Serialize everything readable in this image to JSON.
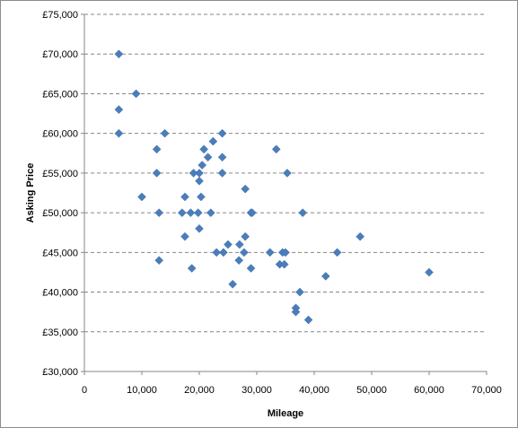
{
  "chart_data": {
    "type": "scatter",
    "title": "",
    "xlabel": "Mileage",
    "ylabel": "Asking Price",
    "xlim": [
      0,
      70000
    ],
    "ylim": [
      30000,
      75000
    ],
    "x_ticks": [
      0,
      10000,
      20000,
      30000,
      40000,
      50000,
      60000,
      70000
    ],
    "x_tick_labels": [
      "0",
      "10,000",
      "20,000",
      "30,000",
      "40,000",
      "50,000",
      "60,000",
      "70,000"
    ],
    "y_ticks": [
      30000,
      35000,
      40000,
      45000,
      50000,
      55000,
      60000,
      65000,
      70000,
      75000
    ],
    "y_tick_labels": [
      "£30,000",
      "£35,000",
      "£40,000",
      "£45,000",
      "£50,000",
      "£55,000",
      "£60,000",
      "£65,000",
      "£70,000",
      "£75,000"
    ],
    "grid": "horizontal dashed",
    "legend": "none",
    "marker": "diamond",
    "color": "#4a7ebb",
    "points": [
      {
        "x": 6000,
        "y": 70000
      },
      {
        "x": 9000,
        "y": 65000
      },
      {
        "x": 6000,
        "y": 63000
      },
      {
        "x": 6000,
        "y": 60000
      },
      {
        "x": 14000,
        "y": 60000
      },
      {
        "x": 12600,
        "y": 58000
      },
      {
        "x": 12600,
        "y": 55000
      },
      {
        "x": 10000,
        "y": 52000
      },
      {
        "x": 13000,
        "y": 50000
      },
      {
        "x": 13000,
        "y": 44000
      },
      {
        "x": 17000,
        "y": 50000
      },
      {
        "x": 17500,
        "y": 52000
      },
      {
        "x": 17500,
        "y": 47000
      },
      {
        "x": 18500,
        "y": 50000
      },
      {
        "x": 18700,
        "y": 43000
      },
      {
        "x": 19000,
        "y": 55000
      },
      {
        "x": 19800,
        "y": 50000
      },
      {
        "x": 20000,
        "y": 54000
      },
      {
        "x": 20000,
        "y": 55000
      },
      {
        "x": 20000,
        "y": 48000
      },
      {
        "x": 20300,
        "y": 52000
      },
      {
        "x": 20500,
        "y": 56000
      },
      {
        "x": 20800,
        "y": 58000
      },
      {
        "x": 21500,
        "y": 57000
      },
      {
        "x": 22000,
        "y": 50000
      },
      {
        "x": 22400,
        "y": 59000
      },
      {
        "x": 23000,
        "y": 45000
      },
      {
        "x": 24000,
        "y": 60000
      },
      {
        "x": 24000,
        "y": 57000
      },
      {
        "x": 24000,
        "y": 55000
      },
      {
        "x": 24200,
        "y": 45000
      },
      {
        "x": 25000,
        "y": 46000
      },
      {
        "x": 25800,
        "y": 41000
      },
      {
        "x": 26900,
        "y": 44000
      },
      {
        "x": 27000,
        "y": 46000
      },
      {
        "x": 27800,
        "y": 45000
      },
      {
        "x": 28000,
        "y": 53000
      },
      {
        "x": 28000,
        "y": 47000
      },
      {
        "x": 29000,
        "y": 50000
      },
      {
        "x": 29200,
        "y": 50000
      },
      {
        "x": 29000,
        "y": 43000
      },
      {
        "x": 32300,
        "y": 45000
      },
      {
        "x": 33400,
        "y": 58000
      },
      {
        "x": 34000,
        "y": 43500
      },
      {
        "x": 34500,
        "y": 45000
      },
      {
        "x": 34800,
        "y": 43500
      },
      {
        "x": 35000,
        "y": 45000
      },
      {
        "x": 35300,
        "y": 55000
      },
      {
        "x": 36800,
        "y": 38000
      },
      {
        "x": 36800,
        "y": 37500
      },
      {
        "x": 37500,
        "y": 40000
      },
      {
        "x": 38000,
        "y": 50000
      },
      {
        "x": 39000,
        "y": 36500
      },
      {
        "x": 42000,
        "y": 42000
      },
      {
        "x": 44000,
        "y": 45000
      },
      {
        "x": 48000,
        "y": 47000
      },
      {
        "x": 60000,
        "y": 42500
      }
    ]
  }
}
